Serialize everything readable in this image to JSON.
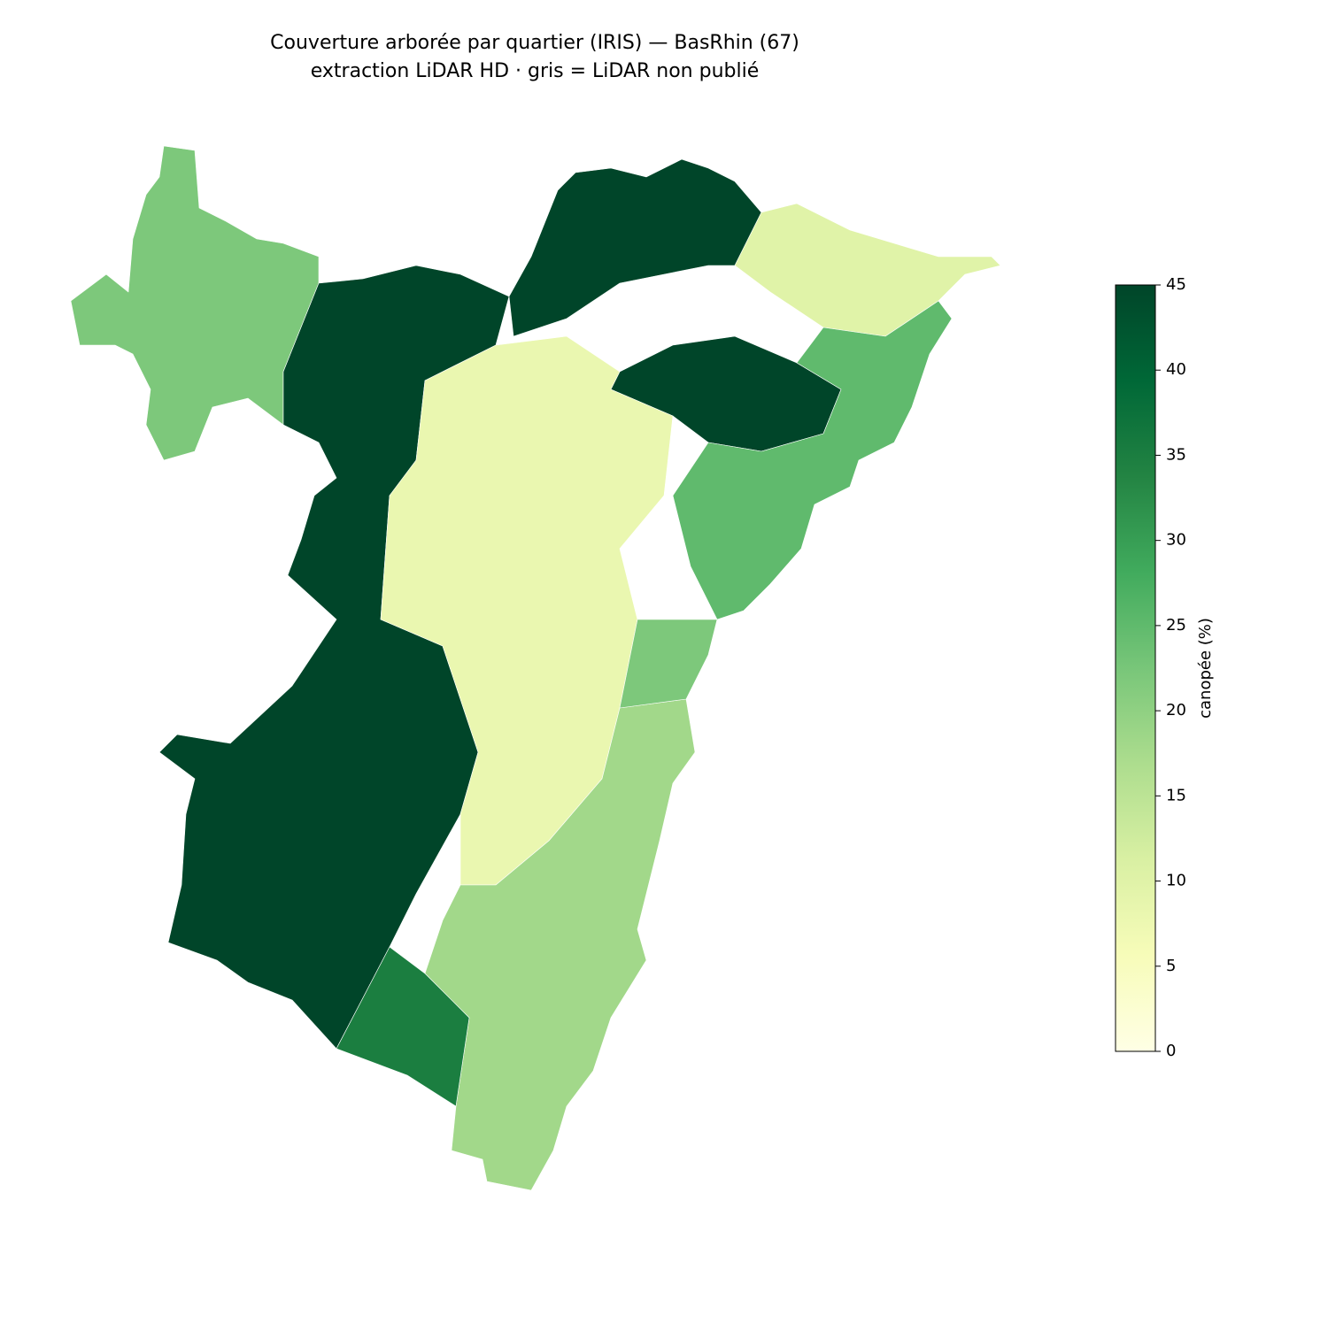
{
  "chart_data": {
    "type": "choropleth",
    "title": "Couverture arborée par quartier (IRIS) — BasRhin (67)",
    "subtitle": "extraction LiDAR HD · gris = LiDAR non publié",
    "colormap": "YlGn",
    "clim": [
      0,
      45
    ],
    "cticks": [
      0,
      5,
      10,
      15,
      20,
      25,
      30,
      35,
      40,
      45
    ],
    "colorbar_label": "canopée (%)",
    "region_values": [
      22,
      45,
      45,
      45,
      8,
      10,
      25,
      18,
      35,
      22
    ]
  }
}
